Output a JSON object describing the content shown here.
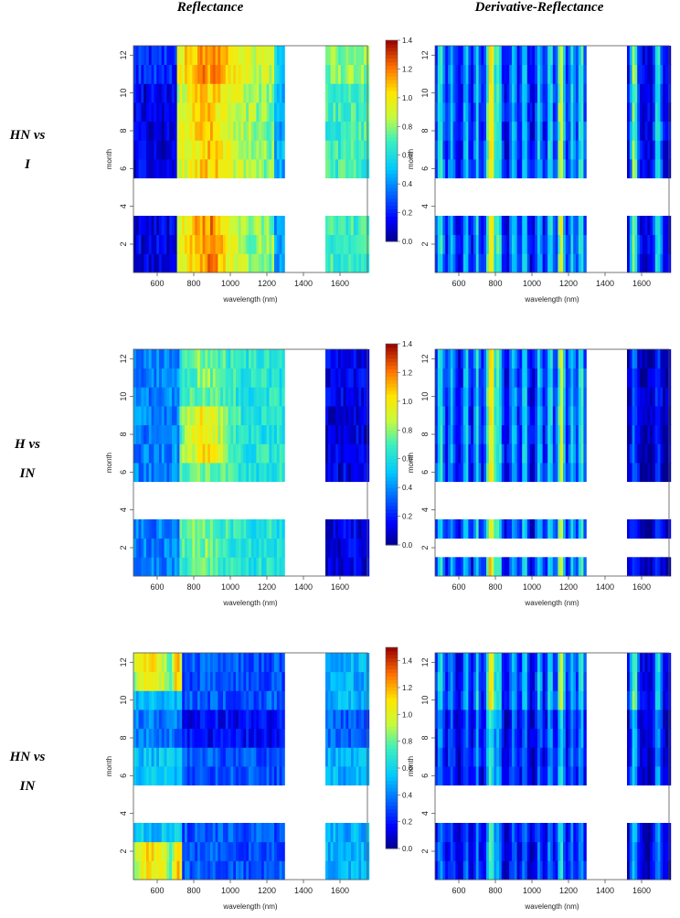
{
  "figure": {
    "column_titles": [
      "Reflectance",
      "Derivative-Reflectance"
    ],
    "row_labels": [
      {
        "line1": "HN vs",
        "line2": "I"
      },
      {
        "line1": "H vs",
        "line2": "IN"
      },
      {
        "line1": "HN vs",
        "line2": "IN"
      }
    ]
  },
  "chart_data": [
    {
      "id": "r1-reflectance",
      "type": "heatmap",
      "row": 0,
      "col": 0,
      "seed": 11,
      "style": "refl",
      "profile": "hn_i",
      "xlabel": "wavelength (nm)",
      "ylabel": "month",
      "xlim": [
        470,
        1750
      ],
      "ylim": [
        0.5,
        12.5
      ],
      "x_ticks": [
        600,
        800,
        1000,
        1200,
        1400,
        1600
      ],
      "y_ticks": [
        2,
        4,
        6,
        8,
        10,
        12
      ],
      "missing_x_range": [
        1300,
        1520
      ],
      "missing_months": [
        4,
        5
      ],
      "colorbar": {
        "min": 0,
        "max": 1.4,
        "ticks": [
          "0.0",
          "0.2",
          "0.4",
          "0.6",
          "0.8",
          "1.0",
          "1.2",
          "1.4"
        ]
      }
    },
    {
      "id": "r1-derivative",
      "type": "heatmap",
      "row": 0,
      "col": 1,
      "seed": 12,
      "style": "deriv",
      "profile": "hn_i",
      "xlabel": "wavelength (nm)",
      "ylabel": "month",
      "xlim": [
        470,
        1750
      ],
      "ylim": [
        0.5,
        12.5
      ],
      "x_ticks": [
        600,
        800,
        1000,
        1200,
        1400,
        1600
      ],
      "y_ticks": [
        2,
        4,
        6,
        8,
        10,
        12
      ],
      "missing_x_range": [
        1300,
        1520
      ],
      "missing_months": [
        4,
        5
      ],
      "colorbar": {
        "min": 0,
        "max": 1.4,
        "ticks": [
          "0.0",
          "0.2",
          "0.4",
          "0.6",
          "0.8",
          "1.0",
          "1.2",
          "1.4"
        ]
      }
    },
    {
      "id": "r2-reflectance",
      "type": "heatmap",
      "row": 1,
      "col": 0,
      "seed": 21,
      "style": "refl",
      "profile": "h_in",
      "xlabel": "wavelength (nm)",
      "ylabel": "month",
      "xlim": [
        470,
        1750
      ],
      "ylim": [
        0.5,
        12.5
      ],
      "x_ticks": [
        600,
        800,
        1000,
        1200,
        1400,
        1600
      ],
      "y_ticks": [
        2,
        4,
        6,
        8,
        10,
        12
      ],
      "missing_x_range": [
        1300,
        1520
      ],
      "missing_months": [
        4,
        5
      ],
      "colorbar": {
        "min": 0,
        "max": 1.4,
        "ticks": [
          "0.0",
          "0.2",
          "0.4",
          "0.6",
          "0.8",
          "1.0",
          "1.2",
          "1.4"
        ]
      }
    },
    {
      "id": "r2-derivative",
      "type": "heatmap",
      "row": 1,
      "col": 1,
      "seed": 22,
      "style": "deriv",
      "profile": "h_in",
      "xlabel": "wavelength (nm)",
      "ylabel": "month",
      "xlim": [
        470,
        1750
      ],
      "ylim": [
        0.5,
        12.5
      ],
      "x_ticks": [
        600,
        800,
        1000,
        1200,
        1400,
        1600
      ],
      "y_ticks": [
        2,
        4,
        6,
        8,
        10,
        12
      ],
      "missing_x_range": [
        1300,
        1520
      ],
      "missing_months": [
        2,
        4,
        5
      ],
      "colorbar": {
        "min": 0,
        "max": 1.4,
        "ticks": [
          "0.0",
          "0.2",
          "0.4",
          "0.6",
          "0.8",
          "1.0",
          "1.2",
          "1.4"
        ]
      }
    },
    {
      "id": "r3-reflectance",
      "type": "heatmap",
      "row": 2,
      "col": 0,
      "seed": 31,
      "style": "refl",
      "profile": "hn_in",
      "xlabel": "wavelength (nm)",
      "ylabel": "month",
      "xlim": [
        470,
        1750
      ],
      "ylim": [
        0.5,
        12.5
      ],
      "x_ticks": [
        600,
        800,
        1000,
        1200,
        1400,
        1600
      ],
      "y_ticks": [
        2,
        4,
        6,
        8,
        10,
        12
      ],
      "missing_x_range": [
        1300,
        1520
      ],
      "missing_months": [
        4,
        5
      ],
      "colorbar": {
        "min": 0,
        "max": 1.5,
        "ticks": [
          "0.0",
          "0.2",
          "0.4",
          "0.6",
          "0.8",
          "1.0",
          "1.2",
          "1.4"
        ]
      }
    },
    {
      "id": "r3-derivative",
      "type": "heatmap",
      "row": 2,
      "col": 1,
      "seed": 32,
      "style": "deriv",
      "profile": "hn_in",
      "xlabel": "wavelength (nm)",
      "ylabel": "month",
      "xlim": [
        470,
        1750
      ],
      "ylim": [
        0.5,
        12.5
      ],
      "x_ticks": [
        600,
        800,
        1000,
        1200,
        1400,
        1600
      ],
      "y_ticks": [
        2,
        4,
        6,
        8,
        10,
        12
      ],
      "missing_x_range": [
        1300,
        1520
      ],
      "missing_months": [
        4,
        5
      ],
      "colorbar": {
        "min": 0,
        "max": 1.5,
        "ticks": [
          "0.0",
          "0.2",
          "0.4",
          "0.6",
          "0.8",
          "1.0",
          "1.2",
          "1.4"
        ]
      }
    }
  ]
}
